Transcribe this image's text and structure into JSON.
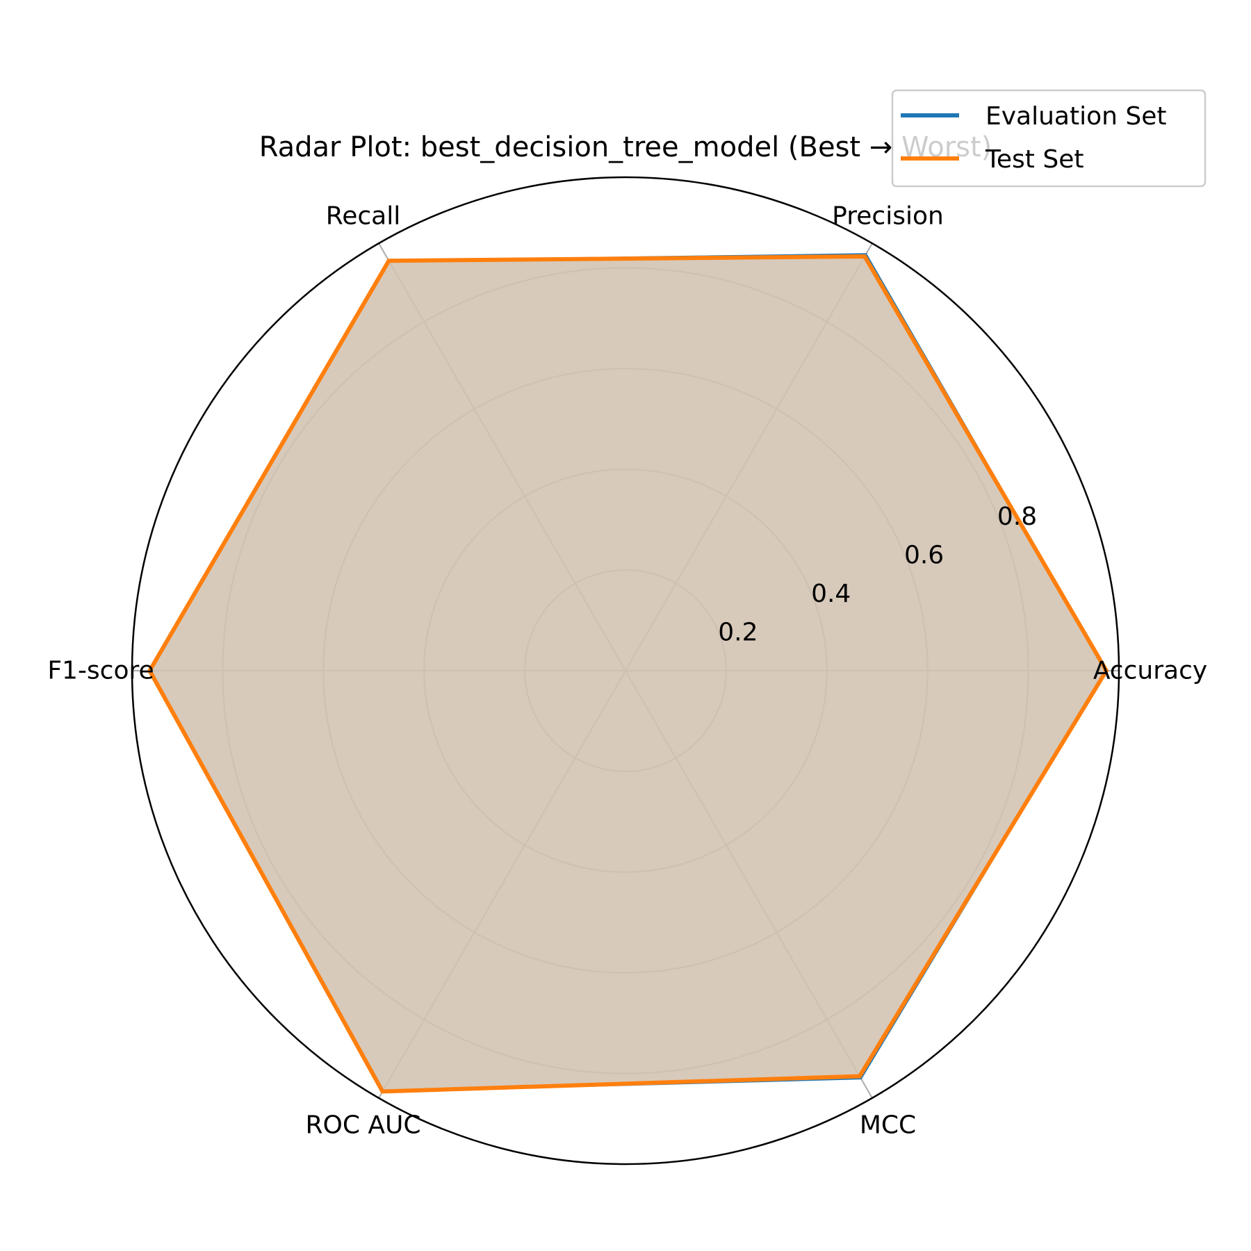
{
  "chart_data": {
    "type": "radar",
    "title": "Radar Plot: best_decision_tree_model (Best → Worst)",
    "axes": [
      "Accuracy",
      "Precision",
      "Recall",
      "F1-score",
      "ROC AUC",
      "MCC"
    ],
    "rlim": [
      0,
      0.98
    ],
    "rticks": [
      0.2,
      0.4,
      0.6,
      0.8
    ],
    "rtick_labels": [
      "0.2",
      "0.4",
      "0.6",
      "0.8"
    ],
    "grid": true,
    "legend_position": "top-right",
    "series": [
      {
        "name": "Evaluation Set",
        "color": "#1f77b4",
        "values": [
          0.955,
          0.955,
          0.94,
          0.945,
          0.965,
          0.935
        ]
      },
      {
        "name": "Test Set",
        "color": "#ff7f0e",
        "values": [
          0.955,
          0.95,
          0.94,
          0.945,
          0.965,
          0.93
        ]
      }
    ],
    "fill_color": "#d2c3b3"
  }
}
